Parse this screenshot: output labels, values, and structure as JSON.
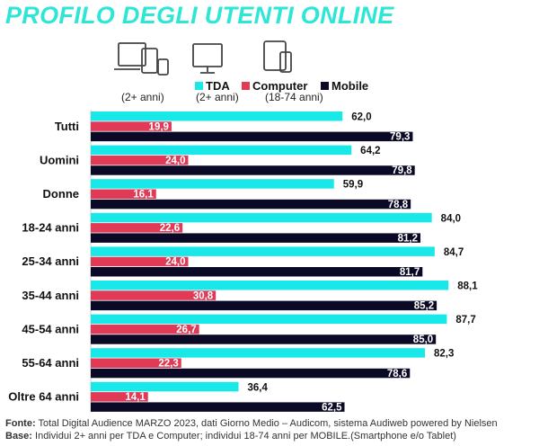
{
  "title": "PROFILO DEGLI UTENTI ONLINE",
  "colors": {
    "title": "#2ee6d6",
    "tda": "#19e8e8",
    "computer": "#e03a57",
    "mobile": "#0b0a26"
  },
  "devices": [
    {
      "icon": "laptop-tablet-phone-icon",
      "sublabel": "(2+ anni)"
    },
    {
      "icon": "desktop-monitor-icon",
      "sublabel": "(2+ anni)"
    },
    {
      "icon": "tablet-phone-icon",
      "sublabel": "(18-74 anni)"
    }
  ],
  "legend": [
    {
      "name": "TDA",
      "color": "#19e8e8"
    },
    {
      "name": "Computer",
      "color": "#e03a57"
    },
    {
      "name": "Mobile",
      "color": "#0b0a26"
    }
  ],
  "chart_data": {
    "type": "bar",
    "orientation": "horizontal",
    "categories": [
      "Tutti",
      "Uomini",
      "Donne",
      "18-24 anni",
      "25-34 anni",
      "35-44 anni",
      "45-54 anni",
      "55-64 anni",
      "Oltre 64 anni"
    ],
    "series": [
      {
        "name": "TDA",
        "color": "#19e8e8",
        "values": [
          62.0,
          64.2,
          59.9,
          84.0,
          84.7,
          88.1,
          87.7,
          82.3,
          36.4
        ],
        "labels": [
          "62,0",
          "64,2",
          "59,9",
          "84,0",
          "84,7",
          "88,1",
          "87,7",
          "82,3",
          "36,4"
        ]
      },
      {
        "name": "Computer",
        "color": "#e03a57",
        "values": [
          19.9,
          24.0,
          16.1,
          22.6,
          24.0,
          30.8,
          26.7,
          22.3,
          14.1
        ],
        "labels": [
          "19,9",
          "24,0",
          "16,1",
          "22,6",
          "24,0",
          "30,8",
          "26,7",
          "22,3",
          "14,1"
        ]
      },
      {
        "name": "Mobile",
        "color": "#0b0a26",
        "values": [
          79.3,
          79.8,
          78.8,
          81.2,
          81.7,
          85.2,
          85.0,
          78.6,
          62.5
        ],
        "labels": [
          "79,3",
          "79,8",
          "78,8",
          "81,2",
          "81,7",
          "85,2",
          "85,0",
          "78,6",
          "62,5"
        ]
      }
    ],
    "xlim": [
      0,
      100
    ],
    "grid": false,
    "legend_position": "top"
  },
  "footer": {
    "fonte_label": "Fonte:",
    "fonte_text": "Total Digital Audience MARZO 2023, dati Giorno Medio – Audicom, sistema Audiweb powered by Nielsen",
    "base_label": "Base:",
    "base_text": "Individui 2+ anni per TDA e Computer; individui 18-74 anni per MOBILE.(Smartphone e/o Tablet)"
  }
}
